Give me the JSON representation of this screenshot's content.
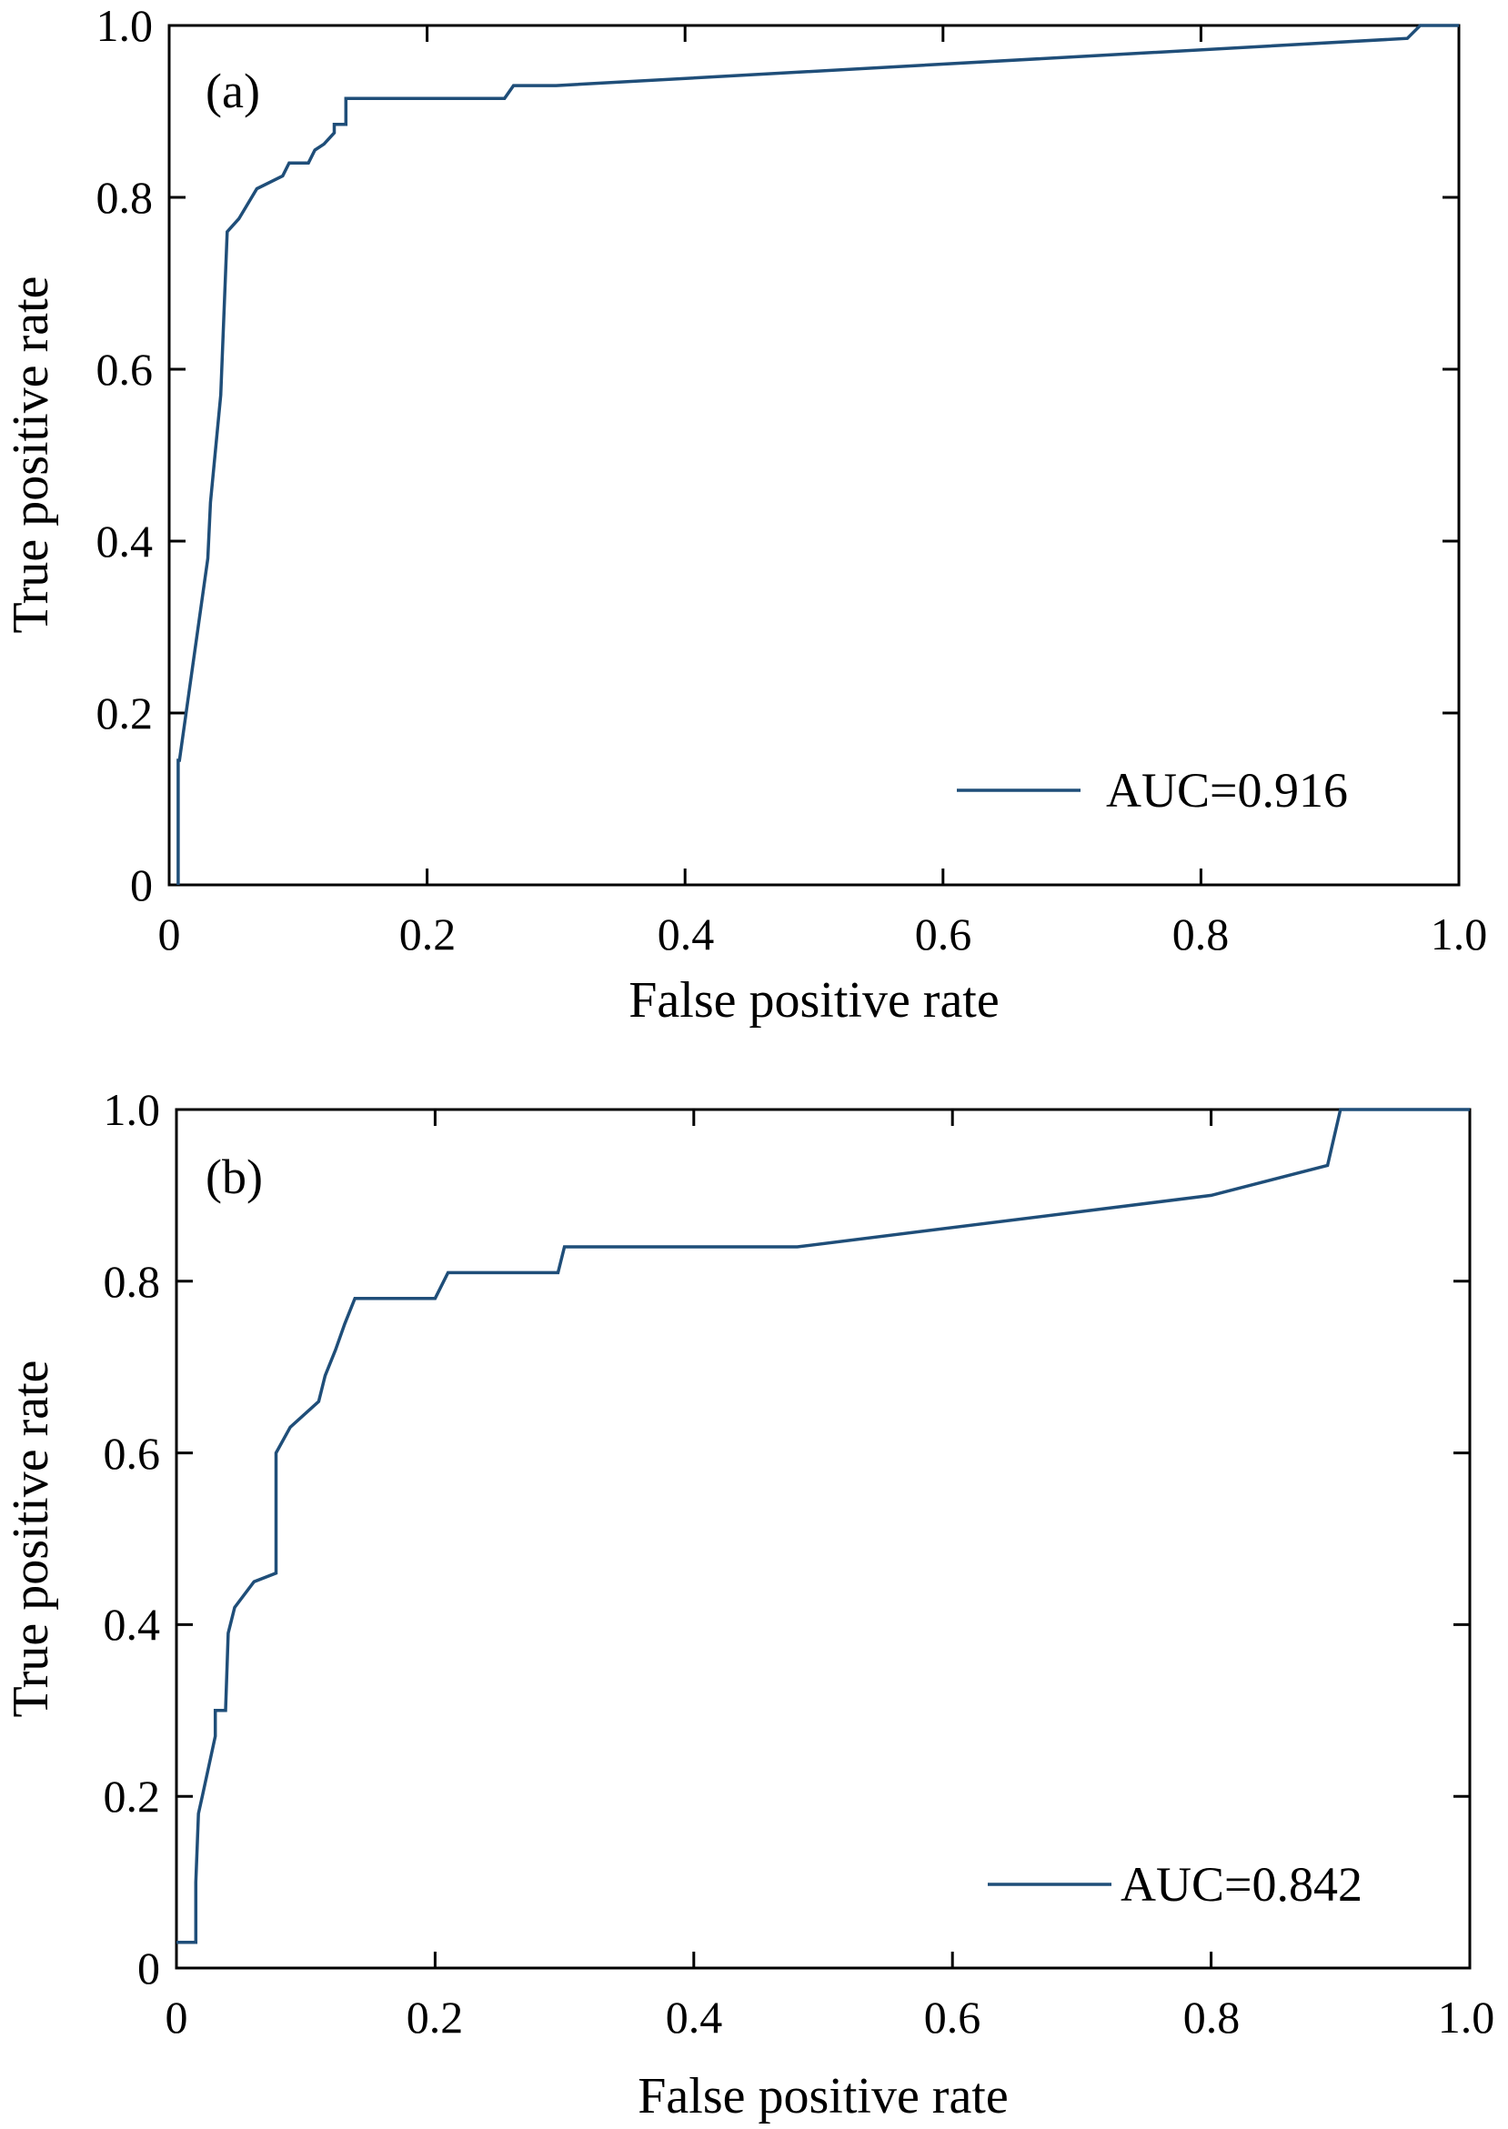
{
  "colors": {
    "curve": "#1f4e79",
    "axes": "#000000",
    "background": "#ffffff"
  },
  "chart_data": [
    {
      "type": "line",
      "panel_label": "(a)",
      "xlabel": "False positive rate",
      "ylabel": "True positive rate",
      "xlim": [
        0,
        1.0
      ],
      "ylim": [
        0,
        1.0
      ],
      "xticks": [
        "0",
        "0.2",
        "0.4",
        "0.6",
        "0.8",
        "1.0"
      ],
      "yticks": [
        "0",
        "0.2",
        "0.4",
        "0.6",
        "0.8",
        "1.0"
      ],
      "legend": {
        "entry": "AUC=0.916",
        "position": "lower-right"
      },
      "grid": false,
      "series": [
        {
          "name": "AUC=0.916",
          "x": [
            0.007,
            0.007,
            0.008,
            0.03,
            0.032,
            0.032,
            0.04,
            0.04,
            0.045,
            0.045,
            0.054,
            0.054,
            0.068,
            0.068,
            0.088,
            0.088,
            0.093,
            0.093,
            0.108,
            0.113,
            0.12,
            0.128,
            0.128,
            0.137,
            0.137,
            0.26,
            0.267,
            0.3,
            0.96,
            0.97,
            1.0
          ],
          "y": [
            0.0,
            0.145,
            0.145,
            0.38,
            0.445,
            0.445,
            0.57,
            0.57,
            0.76,
            0.76,
            0.775,
            0.775,
            0.81,
            0.81,
            0.825,
            0.825,
            0.84,
            0.84,
            0.84,
            0.855,
            0.862,
            0.875,
            0.885,
            0.885,
            0.915,
            0.915,
            0.93,
            0.93,
            0.985,
            1.0,
            1.0
          ]
        }
      ]
    },
    {
      "type": "line",
      "panel_label": "(b)",
      "xlabel": "False positive rate",
      "ylabel": "True positive rate",
      "xlim": [
        0,
        1.0
      ],
      "ylim": [
        0,
        1.0
      ],
      "xticks": [
        "0",
        "0.2",
        "0.4",
        "0.6",
        "0.8",
        "1.0"
      ],
      "yticks": [
        "0",
        "0.2",
        "0.4",
        "0.6",
        "0.8",
        "1.0"
      ],
      "legend": {
        "entry": "AUC=0.842",
        "position": "lower-right"
      },
      "grid": false,
      "series": [
        {
          "name": "AUC=0.842",
          "x": [
            0.0,
            0.015,
            0.015,
            0.017,
            0.02,
            0.03,
            0.03,
            0.038,
            0.04,
            0.04,
            0.045,
            0.045,
            0.06,
            0.06,
            0.077,
            0.077,
            0.088,
            0.088,
            0.11,
            0.11,
            0.115,
            0.115,
            0.123,
            0.123,
            0.13,
            0.13,
            0.138,
            0.138,
            0.2,
            0.21,
            0.295,
            0.3,
            0.48,
            0.8,
            0.89,
            0.9,
            1.0
          ],
          "y": [
            0.03,
            0.03,
            0.1,
            0.18,
            0.2,
            0.27,
            0.3,
            0.3,
            0.39,
            0.39,
            0.42,
            0.42,
            0.45,
            0.45,
            0.46,
            0.6,
            0.63,
            0.63,
            0.66,
            0.66,
            0.69,
            0.69,
            0.72,
            0.72,
            0.75,
            0.75,
            0.78,
            0.78,
            0.78,
            0.81,
            0.81,
            0.84,
            0.84,
            0.9,
            0.935,
            1.0,
            1.0
          ]
        }
      ]
    }
  ]
}
